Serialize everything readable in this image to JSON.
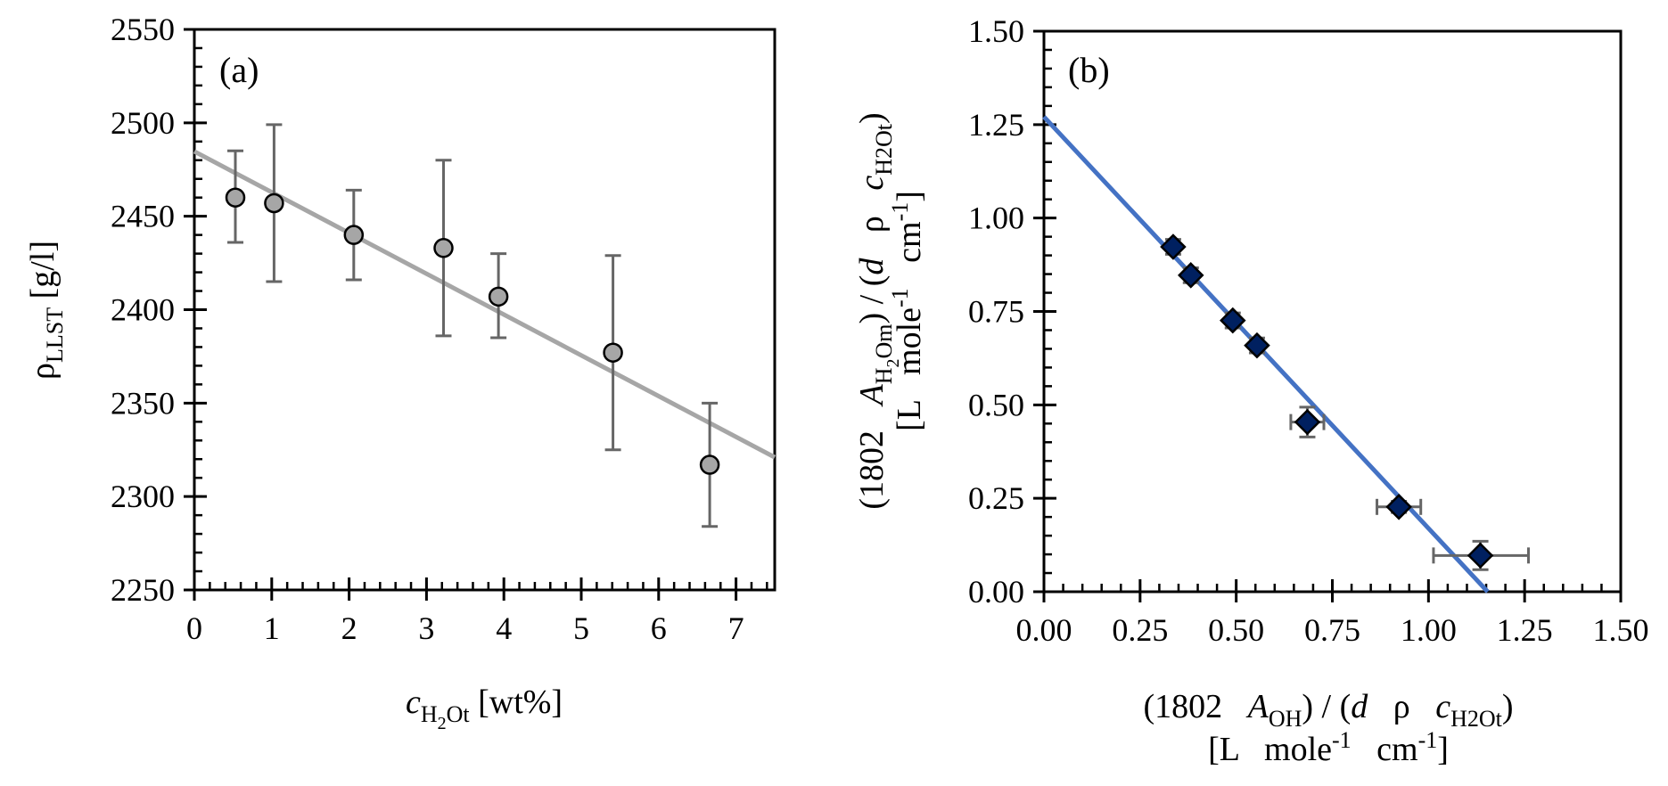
{
  "chart_data": [
    {
      "id": "a",
      "type": "scatter",
      "panel_label": "(a)",
      "title": "",
      "xlabel": {
        "var": "c",
        "sub": "H2Ot",
        "unit": "[wt%]"
      },
      "ylabel": {
        "var": "ρ",
        "sub": "LLST",
        "unit": "[g/l]"
      },
      "xlim": [
        0,
        7.5
      ],
      "ylim": [
        2250,
        2550
      ],
      "xticks": [
        0,
        1,
        2,
        3,
        4,
        5,
        6,
        7
      ],
      "xtick_labels": [
        "0",
        "1",
        "2",
        "3",
        "4",
        "5",
        "6",
        "7"
      ],
      "yticks": [
        2250,
        2300,
        2350,
        2400,
        2450,
        2500,
        2550
      ],
      "ytick_labels": [
        "2250",
        "2300",
        "2350",
        "2400",
        "2450",
        "2500",
        "2550"
      ],
      "x_minor_step": 0.2,
      "y_minor_step": 10,
      "grid": false,
      "colors": {
        "marker_fill": "#A6A6A6",
        "marker_edge": "#000000",
        "errorbar": "#666666",
        "fit_line": "#A6A6A6"
      },
      "points": [
        {
          "x": 0.53,
          "y": 2460,
          "y_low": 2436,
          "y_high": 2485
        },
        {
          "x": 1.03,
          "y": 2457,
          "y_low": 2415,
          "y_high": 2499
        },
        {
          "x": 2.06,
          "y": 2440,
          "y_low": 2416,
          "y_high": 2464
        },
        {
          "x": 3.22,
          "y": 2433,
          "y_low": 2386,
          "y_high": 2480
        },
        {
          "x": 3.93,
          "y": 2407,
          "y_low": 2385,
          "y_high": 2430
        },
        {
          "x": 5.41,
          "y": 2377,
          "y_low": 2325,
          "y_high": 2429
        },
        {
          "x": 6.66,
          "y": 2317,
          "y_low": 2284,
          "y_high": 2350
        }
      ],
      "fit_line": {
        "x0": 0,
        "y0": 2484.7,
        "x1": 7.5,
        "y1": 2321
      }
    },
    {
      "id": "b",
      "type": "scatter",
      "panel_label": "(b)",
      "title": "",
      "xlabel": {
        "line1": "(1802   A_OH) / (d   ρ   c_H2Ot)",
        "line2": "[L   mole-1   cm-1]"
      },
      "ylabel": {
        "line1": "(1802   A_H2Om) / (d   ρ   c_H2Ot)",
        "line2": "[L   mole-1   cm-1]"
      },
      "xlim": [
        0,
        1.5
      ],
      "ylim": [
        0,
        1.5
      ],
      "xticks": [
        0,
        0.25,
        0.5,
        0.75,
        1.0,
        1.25,
        1.5
      ],
      "xtick_labels": [
        "0.00",
        "0.25",
        "0.50",
        "0.75",
        "1.00",
        "1.25",
        "1.50"
      ],
      "yticks": [
        0,
        0.25,
        0.5,
        0.75,
        1.0,
        1.25,
        1.5
      ],
      "ytick_labels": [
        "0.00",
        "0.25",
        "0.50",
        "0.75",
        "1.00",
        "1.25",
        "1.50"
      ],
      "x_minor_step": 0.05,
      "y_minor_step": 0.05,
      "grid": false,
      "colors": {
        "marker_fill": "#002060",
        "marker_edge": "#000000",
        "errorbar": "#666666",
        "fit_line": "#4472C4"
      },
      "points": [
        {
          "x": 0.336,
          "y": 0.923,
          "x_err": 0.012,
          "y_err": 0.02
        },
        {
          "x": 0.382,
          "y": 0.847,
          "x_err": 0.012,
          "y_err": 0.02
        },
        {
          "x": 0.491,
          "y": 0.726,
          "x_err": 0.012,
          "y_err": 0.02
        },
        {
          "x": 0.554,
          "y": 0.659,
          "x_err": 0.012,
          "y_err": 0.02
        },
        {
          "x": 0.685,
          "y": 0.454,
          "x_err": 0.043,
          "y_err": 0.04
        },
        {
          "x": 0.923,
          "y": 0.227,
          "x_err": 0.057,
          "y_err": 0.015
        },
        {
          "x": 1.135,
          "y": 0.097,
          "x_low": 1.013,
          "x_high": 1.26,
          "y_err": 0.038
        }
      ],
      "fit_line": {
        "x0": 0,
        "y0": 1.271,
        "x1": 1.154,
        "y1": 0
      }
    }
  ],
  "labels": {
    "a_x_var": "c",
    "a_x_sub": "H",
    "a_x_sub2": "2",
    "a_x_sub3": "Ot",
    "a_x_unit": " [wt%]",
    "a_y_var": "ρ",
    "a_y_sub": "LLST",
    "a_y_unit": " [g/l]",
    "b_x_l1_a": "(1802   ",
    "b_x_l1_A": "A",
    "b_x_l1_Asub": "OH",
    "b_x_l1_b": ") / (",
    "b_x_l1_d": "d",
    "b_x_l1_c": "   ρ   ",
    "b_x_l1_cvar": "c",
    "b_x_l1_csub": "H2Ot",
    "b_x_l1_end": ")",
    "b_x_l2_a": "[L   mole",
    "b_x_l2_sup1": "-1",
    "b_x_l2_b": "   cm",
    "b_x_l2_sup2": "-1",
    "b_x_l2_end": "]",
    "b_y_l1_a": "(1802   ",
    "b_y_l1_A": "A",
    "b_y_l1_Asub": "H",
    "b_y_l1_Asub2": "2",
    "b_y_l1_Asub3": "Om",
    "b_y_l1_b": ") / (",
    "b_y_l1_d": "d",
    "b_y_l1_c": "   ρ   ",
    "b_y_l1_cvar": "c",
    "b_y_l1_csub": "H2Ot",
    "b_y_l1_end": ")",
    "b_y_l2_a": "[L   mole",
    "b_y_l2_sup1": "-1",
    "b_y_l2_b": "   cm",
    "b_y_l2_sup2": "-1",
    "b_y_l2_end": "]"
  }
}
